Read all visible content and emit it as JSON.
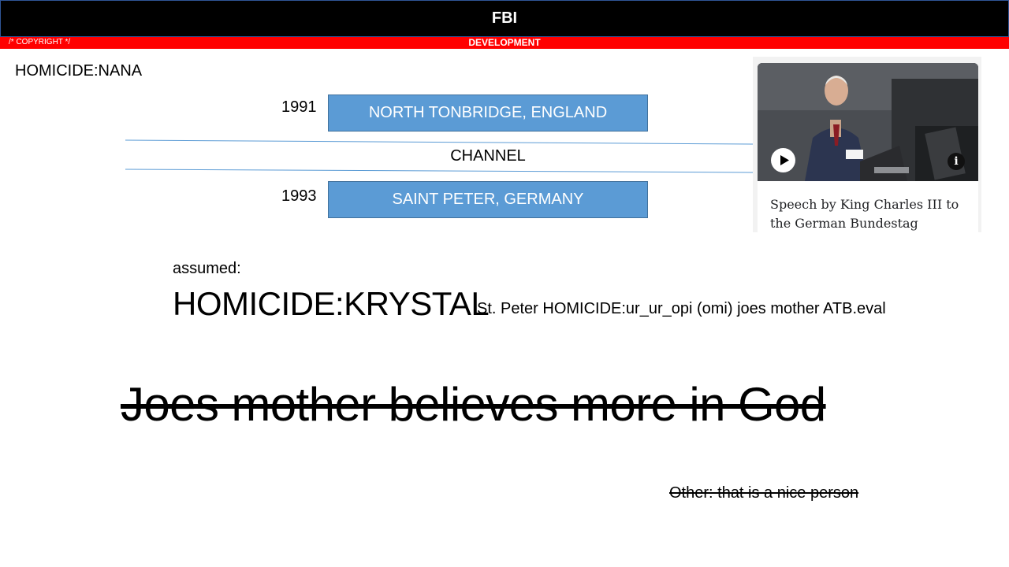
{
  "header": {
    "title": "FBI"
  },
  "banner": {
    "left_text": "/* COPYRIGHT */",
    "center_text": "DEVELOPMENT"
  },
  "case": {
    "label": "HOMICIDE:NANA"
  },
  "timeline": {
    "entries": [
      {
        "year": "1991",
        "location": "NORTH TONBRIDGE, ENGLAND"
      },
      {
        "year": "1993",
        "location": "SAINT PETER, GERMANY"
      }
    ],
    "divider_label": "CHANNEL"
  },
  "media_card": {
    "caption": "Speech by King Charles III to the German Bundestag",
    "play_icon": "play-icon",
    "info_icon": "info-icon",
    "info_glyph": "i"
  },
  "assumed": {
    "label": "assumed:",
    "primary": "HOMICIDE:KRYSTAL",
    "detail": "St. Peter HOMICIDE:ur_ur_opi (omi)  joes mother ATB.eval"
  },
  "statements": {
    "main_struck": "Joes mother believes more in God",
    "other_struck": "Other: that is a nice person"
  },
  "colors": {
    "header_bg": "#000000",
    "banner_bg": "#ff0000",
    "box_fill": "#5b9bd5",
    "divider_line": "#5b9bd5"
  }
}
